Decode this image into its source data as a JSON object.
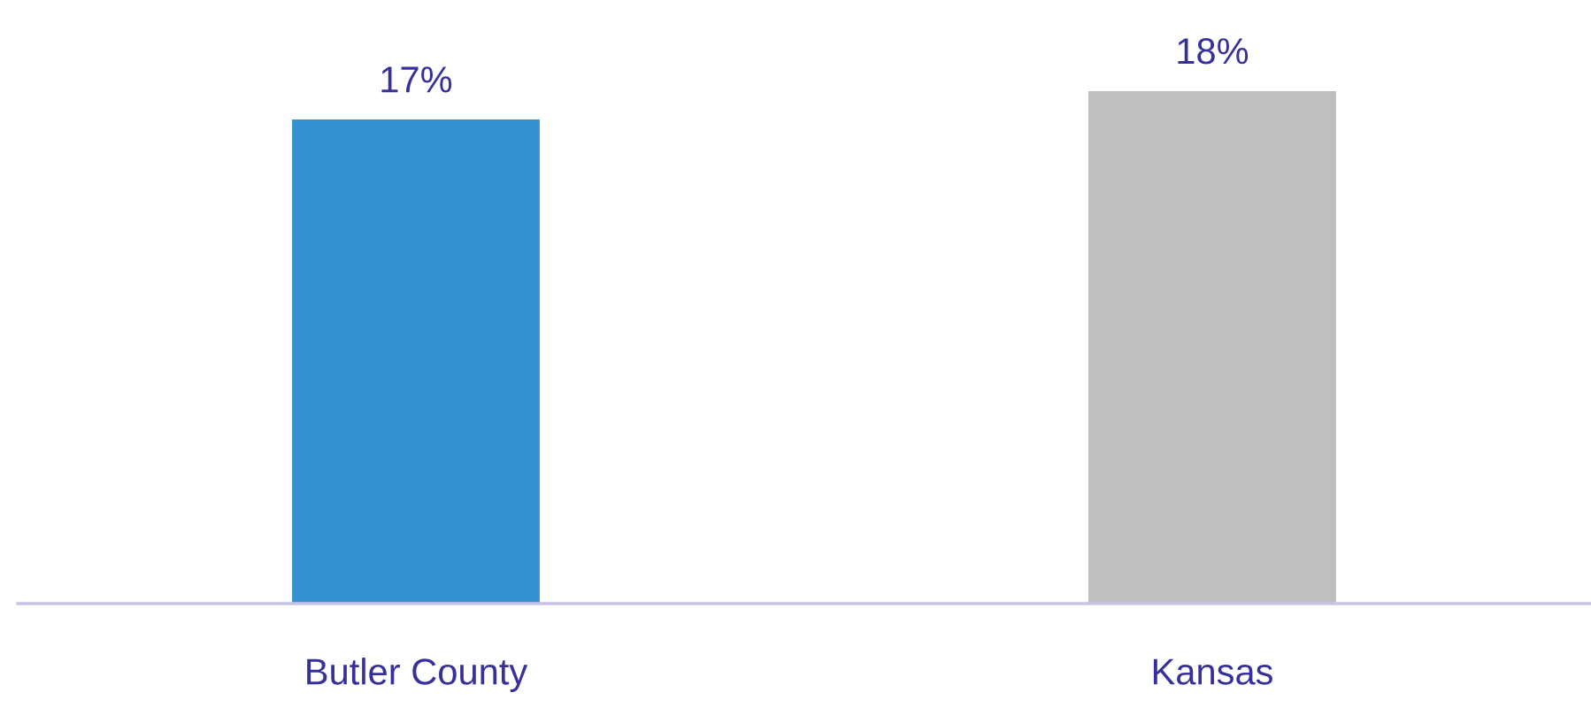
{
  "chart_data": {
    "type": "bar",
    "categories": [
      "Butler County",
      "Kansas"
    ],
    "values": [
      17,
      18
    ],
    "colors": [
      "#3591d0",
      "#bfbfbf"
    ],
    "value_labels": [
      "17%",
      "18%"
    ],
    "grid": false,
    "legend": false
  }
}
